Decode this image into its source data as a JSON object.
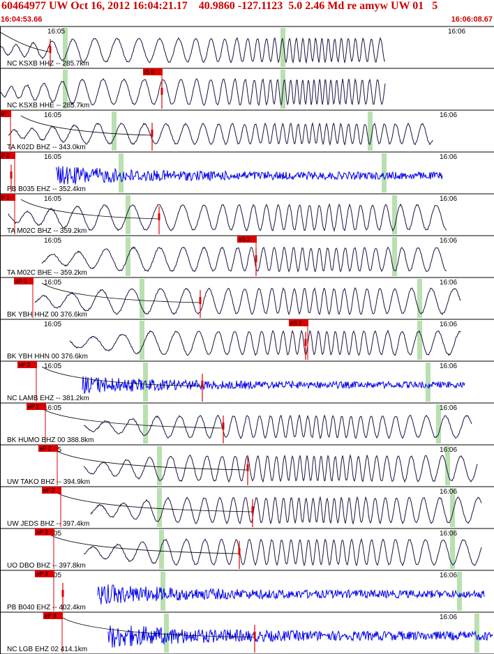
{
  "header": {
    "title": "60464977 UW Oct 16, 2012 16:04:21.17    40.9860 -127.1123  5.0 2.46 Md re amyw UW 01   5",
    "start_time": "16:04:53.66",
    "end_time": "16:06:08.67"
  },
  "colors": {
    "header_text": "#cc0000",
    "pick_flag": "#dd0000",
    "pick_line": "#dd0000",
    "window_band": "#b8e0b0",
    "trace_dark": "#1a1040",
    "trace_blue": "#0000ee",
    "moveout": "#000000",
    "divider": "#000000"
  },
  "chart_data": {
    "type": "line",
    "description_free": true,
    "time_ticks": [
      "16:05",
      "16:06"
    ],
    "rows": [
      {
        "label": "NC KSXB HHZ -- 285.7km",
        "pick": "",
        "trace": "dark"
      },
      {
        "label": "NC KSXB HHE -- 285.7km",
        "pick": "iS 0",
        "trace": "dark"
      },
      {
        "label": "TA K02D BHZ -- 343.0km",
        "pick": "iP",
        "trace": "dark"
      },
      {
        "label": "PB B035 EHZ -- 352.4km",
        "pick": "P 0",
        "trace": "blue"
      },
      {
        "label": "TA M02C BHZ -- 359.2km",
        "pick": "P 1",
        "trace": "dark"
      },
      {
        "label": "TA M02C BHE -- 359.2km",
        "pick": "eS 2",
        "trace": "dark"
      },
      {
        "label": "BK YBH HHZ 00 376.6km",
        "pick": "eP 3",
        "trace": "dark"
      },
      {
        "label": "BK YBH HHN 00 376.6km",
        "pick": "eS 2",
        "trace": "dark"
      },
      {
        "label": "NC LAMB EHZ -- 381.2km",
        "pick": "eP 2",
        "trace": "blue"
      },
      {
        "label": "BK HUMO BHZ 00 388.8km",
        "pick": "eP 2",
        "trace": "dark"
      },
      {
        "label": "UW TAKO BHZ -- 394.9km",
        "pick": "eP 2",
        "trace": "dark"
      },
      {
        "label": "UW JEDS BHZ -- 397.4km",
        "pick": "eP 2",
        "trace": "dark"
      },
      {
        "label": "UO DBO BHZ -- 397.8km",
        "pick": "eP 3",
        "trace": "dark"
      },
      {
        "label": "PB B040 EHZ -- 402.4km",
        "pick": "eP 3",
        "trace": "blue"
      },
      {
        "label": "NC LGB EHZ 02 414.1km",
        "pick": "eP 3",
        "trace": "blue"
      }
    ]
  }
}
